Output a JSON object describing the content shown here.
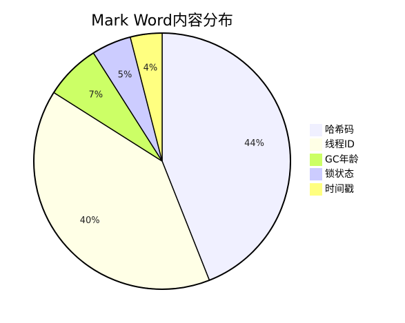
{
  "chart_data": {
    "type": "pie",
    "title": "Mark Word内容分布",
    "categories": [
      "哈希码",
      "线程ID",
      "GC年龄",
      "锁状态",
      "时间戳"
    ],
    "values": [
      44,
      40,
      7,
      5,
      4
    ],
    "labels": [
      "44%",
      "40%",
      "7%",
      "5%",
      "4%"
    ],
    "colors": [
      "#f0f0ff",
      "#ffffe6",
      "#ccff66",
      "#ccccff",
      "#ffff80"
    ],
    "legend_labels": [
      "哈希码",
      "线程ID",
      "GC年龄",
      "锁状态",
      "时间戳"
    ],
    "legend_placement": "right",
    "start_angle_deg": 90,
    "direction": "clockwise"
  }
}
